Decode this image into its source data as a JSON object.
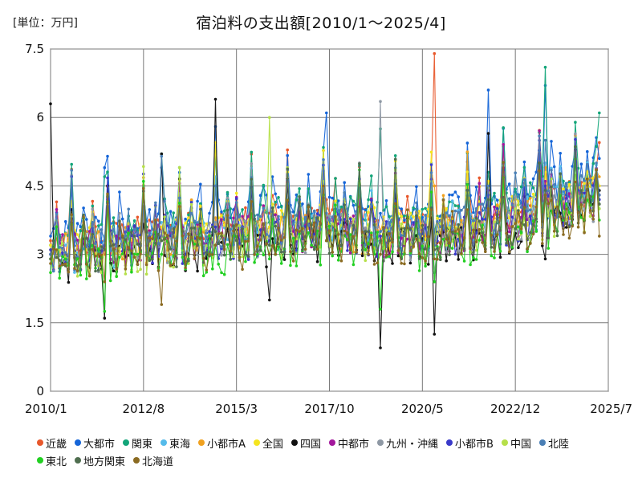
{
  "chart_data": {
    "type": "line",
    "title": "宿泊料の支出額[2010/1～2025/4]",
    "unit_label": "[単位：万円]",
    "xlabel": "",
    "ylabel": "",
    "ylim": [
      0,
      7.5
    ],
    "yticks": [
      0,
      1.5,
      3,
      4.5,
      6,
      7.5
    ],
    "ytick_labels": [
      "0",
      "1.5",
      "3",
      "4.5",
      "6",
      "7.5"
    ],
    "x_range": [
      "2010/1",
      "2025/7"
    ],
    "xtick_labels": [
      "2010/1",
      "2012/8",
      "2015/3",
      "2017/10",
      "2020/5",
      "2022/12",
      "2025/7"
    ],
    "grid": true,
    "legend_position": "bottom",
    "series": [
      {
        "name": "近畿",
        "color": "#e8582c",
        "baseline": [
          3.2,
          3.4,
          3.6,
          3.7,
          3.5,
          3.9,
          4.3
        ],
        "values_sampled": [
          3.3,
          3.0,
          3.4,
          3.8,
          3.9,
          4.2,
          3.5,
          7.4,
          4.4,
          5.0,
          5.45
        ]
      },
      {
        "name": "大都市",
        "color": "#1565d8",
        "baseline": [
          3.3,
          3.6,
          3.8,
          4.0,
          3.8,
          4.2,
          4.8
        ],
        "values_sampled": [
          3.4,
          4.9,
          4.9,
          5.8,
          3.6,
          6.1,
          3.9,
          3.5,
          6.6,
          6.7,
          5.1
        ]
      },
      {
        "name": "関東",
        "color": "#13a579",
        "baseline": [
          3.2,
          3.5,
          3.7,
          3.9,
          3.6,
          4.1,
          4.6
        ],
        "values_sampled": [
          3.2,
          4.7,
          5.2,
          5.25,
          3.7,
          3.6,
          5.75,
          3.4,
          4.8,
          7.1,
          6.1
        ]
      },
      {
        "name": "東海",
        "color": "#55bbea",
        "baseline": [
          3.0,
          3.2,
          3.4,
          3.6,
          3.4,
          3.8,
          4.3
        ],
        "values_sampled": [
          3.0,
          3.4,
          3.7,
          4.7,
          3.2,
          3.9,
          3.5,
          3.0,
          4.6,
          5.0,
          4.0
        ]
      },
      {
        "name": "小都市A",
        "color": "#f0a11f",
        "baseline": [
          3.0,
          3.2,
          3.4,
          3.5,
          3.4,
          3.7,
          4.3
        ],
        "values_sampled": [
          3.1,
          3.3,
          3.5,
          3.8,
          3.6,
          4.0,
          3.4,
          4.5,
          4.5,
          4.9,
          4.7
        ]
      },
      {
        "name": "全国",
        "color": "#f5e51f",
        "baseline": [
          3.1,
          3.3,
          3.5,
          3.7,
          3.5,
          3.8,
          4.4
        ],
        "values_sampled": [
          3.2,
          3.3,
          3.6,
          5.45,
          3.6,
          3.9,
          3.4,
          3.3,
          4.6,
          4.8,
          4.5
        ]
      },
      {
        "name": "四国",
        "color": "#111111",
        "baseline": [
          2.8,
          2.9,
          3.1,
          3.3,
          3.1,
          3.4,
          4.0
        ],
        "values_sampled": [
          6.3,
          1.6,
          5.2,
          6.4,
          2.0,
          3.3,
          0.95,
          1.25,
          5.65,
          2.9,
          4.4
        ]
      },
      {
        "name": "中都市",
        "color": "#a3179c",
        "baseline": [
          3.0,
          3.2,
          3.4,
          3.5,
          3.3,
          3.7,
          4.2
        ],
        "values_sampled": [
          3.0,
          3.2,
          3.5,
          3.6,
          3.3,
          3.8,
          3.4,
          3.3,
          4.4,
          4.6,
          4.3
        ]
      },
      {
        "name": "九州・沖縄",
        "color": "#8e98a4",
        "baseline": [
          3.0,
          3.1,
          3.3,
          3.5,
          3.3,
          3.6,
          4.1
        ],
        "values_sampled": [
          3.0,
          3.3,
          3.5,
          3.7,
          3.2,
          3.7,
          6.35,
          2.6,
          4.2,
          4.5,
          4.1
        ]
      },
      {
        "name": "小都市B",
        "color": "#3a3ac9",
        "baseline": [
          3.0,
          3.2,
          3.3,
          3.5,
          3.3,
          3.6,
          4.2
        ],
        "values_sampled": [
          3.1,
          3.2,
          3.4,
          3.6,
          3.3,
          3.7,
          3.4,
          3.2,
          4.3,
          4.5,
          4.2
        ]
      },
      {
        "name": "中国",
        "color": "#b6e04a",
        "baseline": [
          2.9,
          3.0,
          3.2,
          3.4,
          3.2,
          3.5,
          4.0
        ],
        "values_sampled": [
          2.9,
          3.1,
          3.3,
          3.5,
          6.0,
          3.6,
          3.3,
          3.1,
          4.2,
          4.3,
          4.0
        ]
      },
      {
        "name": "北陸",
        "color": "#4a7fb5",
        "baseline": [
          3.0,
          3.2,
          3.4,
          3.6,
          3.4,
          3.8,
          4.4
        ],
        "values_sampled": [
          3.0,
          3.3,
          5.15,
          4.5,
          3.4,
          3.9,
          3.5,
          3.2,
          4.5,
          5.5,
          4.3
        ]
      },
      {
        "name": "東北",
        "color": "#22d022",
        "baseline": [
          2.7,
          2.9,
          3.0,
          3.2,
          3.0,
          3.3,
          3.9
        ],
        "values_sampled": [
          2.6,
          1.75,
          3.0,
          3.2,
          2.9,
          3.3,
          1.8,
          2.4,
          4.0,
          4.3,
          3.75
        ]
      },
      {
        "name": "地方関東",
        "color": "#4f6e4f",
        "baseline": [
          2.9,
          3.1,
          3.3,
          3.4,
          3.2,
          3.5,
          4.1
        ],
        "values_sampled": [
          2.9,
          3.1,
          3.3,
          3.5,
          3.2,
          3.6,
          3.3,
          3.1,
          4.2,
          4.4,
          4.1
        ]
      },
      {
        "name": "北海道",
        "color": "#8b6b22",
        "baseline": [
          2.8,
          3.0,
          3.1,
          3.3,
          3.1,
          3.4,
          4.0
        ],
        "values_sampled": [
          2.8,
          2.4,
          1.9,
          3.2,
          3.0,
          3.3,
          3.0,
          2.9,
          4.0,
          4.3,
          3.4
        ]
      }
    ],
    "sample_dates": [
      "2010/1",
      "2011/7",
      "2013/1",
      "2014/7",
      "2016/1",
      "2017/7",
      "2019/1",
      "2020/7",
      "2022/1",
      "2023/7",
      "2025/4"
    ]
  }
}
